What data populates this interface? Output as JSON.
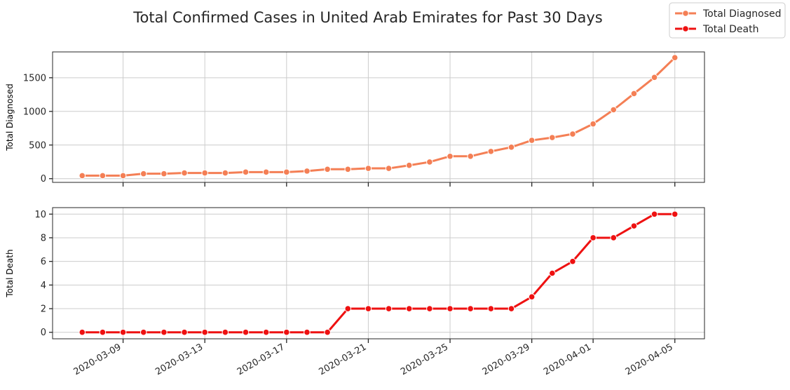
{
  "title": "Total Confirmed Cases in United Arab Emirates for Past 30 Days",
  "chart_data": [
    {
      "type": "line",
      "ylabel": "Total Diagnosed",
      "xlabel": "",
      "x": [
        "2020-03-07",
        "2020-03-08",
        "2020-03-09",
        "2020-03-10",
        "2020-03-11",
        "2020-03-12",
        "2020-03-13",
        "2020-03-14",
        "2020-03-15",
        "2020-03-16",
        "2020-03-17",
        "2020-03-18",
        "2020-03-19",
        "2020-03-20",
        "2020-03-21",
        "2020-03-22",
        "2020-03-23",
        "2020-03-24",
        "2020-03-25",
        "2020-03-26",
        "2020-03-27",
        "2020-03-28",
        "2020-03-29",
        "2020-03-30",
        "2020-03-31",
        "2020-04-01",
        "2020-04-02",
        "2020-04-03",
        "2020-04-04",
        "2020-04-05"
      ],
      "series": [
        {
          "name": "Total Diagnosed",
          "color": "#f47f55",
          "values": [
            45,
            45,
            45,
            74,
            74,
            85,
            85,
            85,
            98,
            98,
            98,
            113,
            140,
            140,
            153,
            153,
            198,
            248,
            333,
            333,
            405,
            468,
            570,
            611,
            664,
            814,
            1024,
            1264,
            1505,
            1799
          ]
        }
      ],
      "yticks": [
        0,
        500,
        1000,
        1500
      ],
      "ylim": [
        -55,
        1884
      ],
      "grid": true
    },
    {
      "type": "line",
      "ylabel": "Total Death",
      "xlabel": "",
      "x": [
        "2020-03-07",
        "2020-03-08",
        "2020-03-09",
        "2020-03-10",
        "2020-03-11",
        "2020-03-12",
        "2020-03-13",
        "2020-03-14",
        "2020-03-15",
        "2020-03-16",
        "2020-03-17",
        "2020-03-18",
        "2020-03-19",
        "2020-03-20",
        "2020-03-21",
        "2020-03-22",
        "2020-03-23",
        "2020-03-24",
        "2020-03-25",
        "2020-03-26",
        "2020-03-27",
        "2020-03-28",
        "2020-03-29",
        "2020-03-30",
        "2020-03-31",
        "2020-04-01",
        "2020-04-02",
        "2020-04-03",
        "2020-04-04",
        "2020-04-05"
      ],
      "series": [
        {
          "name": "Total Death",
          "color": "#ee1111",
          "values": [
            0,
            0,
            0,
            0,
            0,
            0,
            0,
            0,
            0,
            0,
            0,
            0,
            0,
            2,
            2,
            2,
            2,
            2,
            2,
            2,
            2,
            2,
            3,
            5,
            6,
            8,
            8,
            9,
            10,
            10
          ]
        }
      ],
      "yticks": [
        0,
        2,
        4,
        6,
        8,
        10
      ],
      "ylim": [
        -0.55,
        10.55
      ],
      "grid": true
    }
  ],
  "xticks": [
    "2020-03-09",
    "2020-03-13",
    "2020-03-17",
    "2020-03-21",
    "2020-03-25",
    "2020-03-29",
    "2020-04-01",
    "2020-04-05"
  ],
  "legend": {
    "placement": "top-right",
    "items": [
      {
        "label": "Total Diagnosed",
        "color": "#f47f55"
      },
      {
        "label": "Total Death",
        "color": "#ee1111"
      }
    ]
  }
}
